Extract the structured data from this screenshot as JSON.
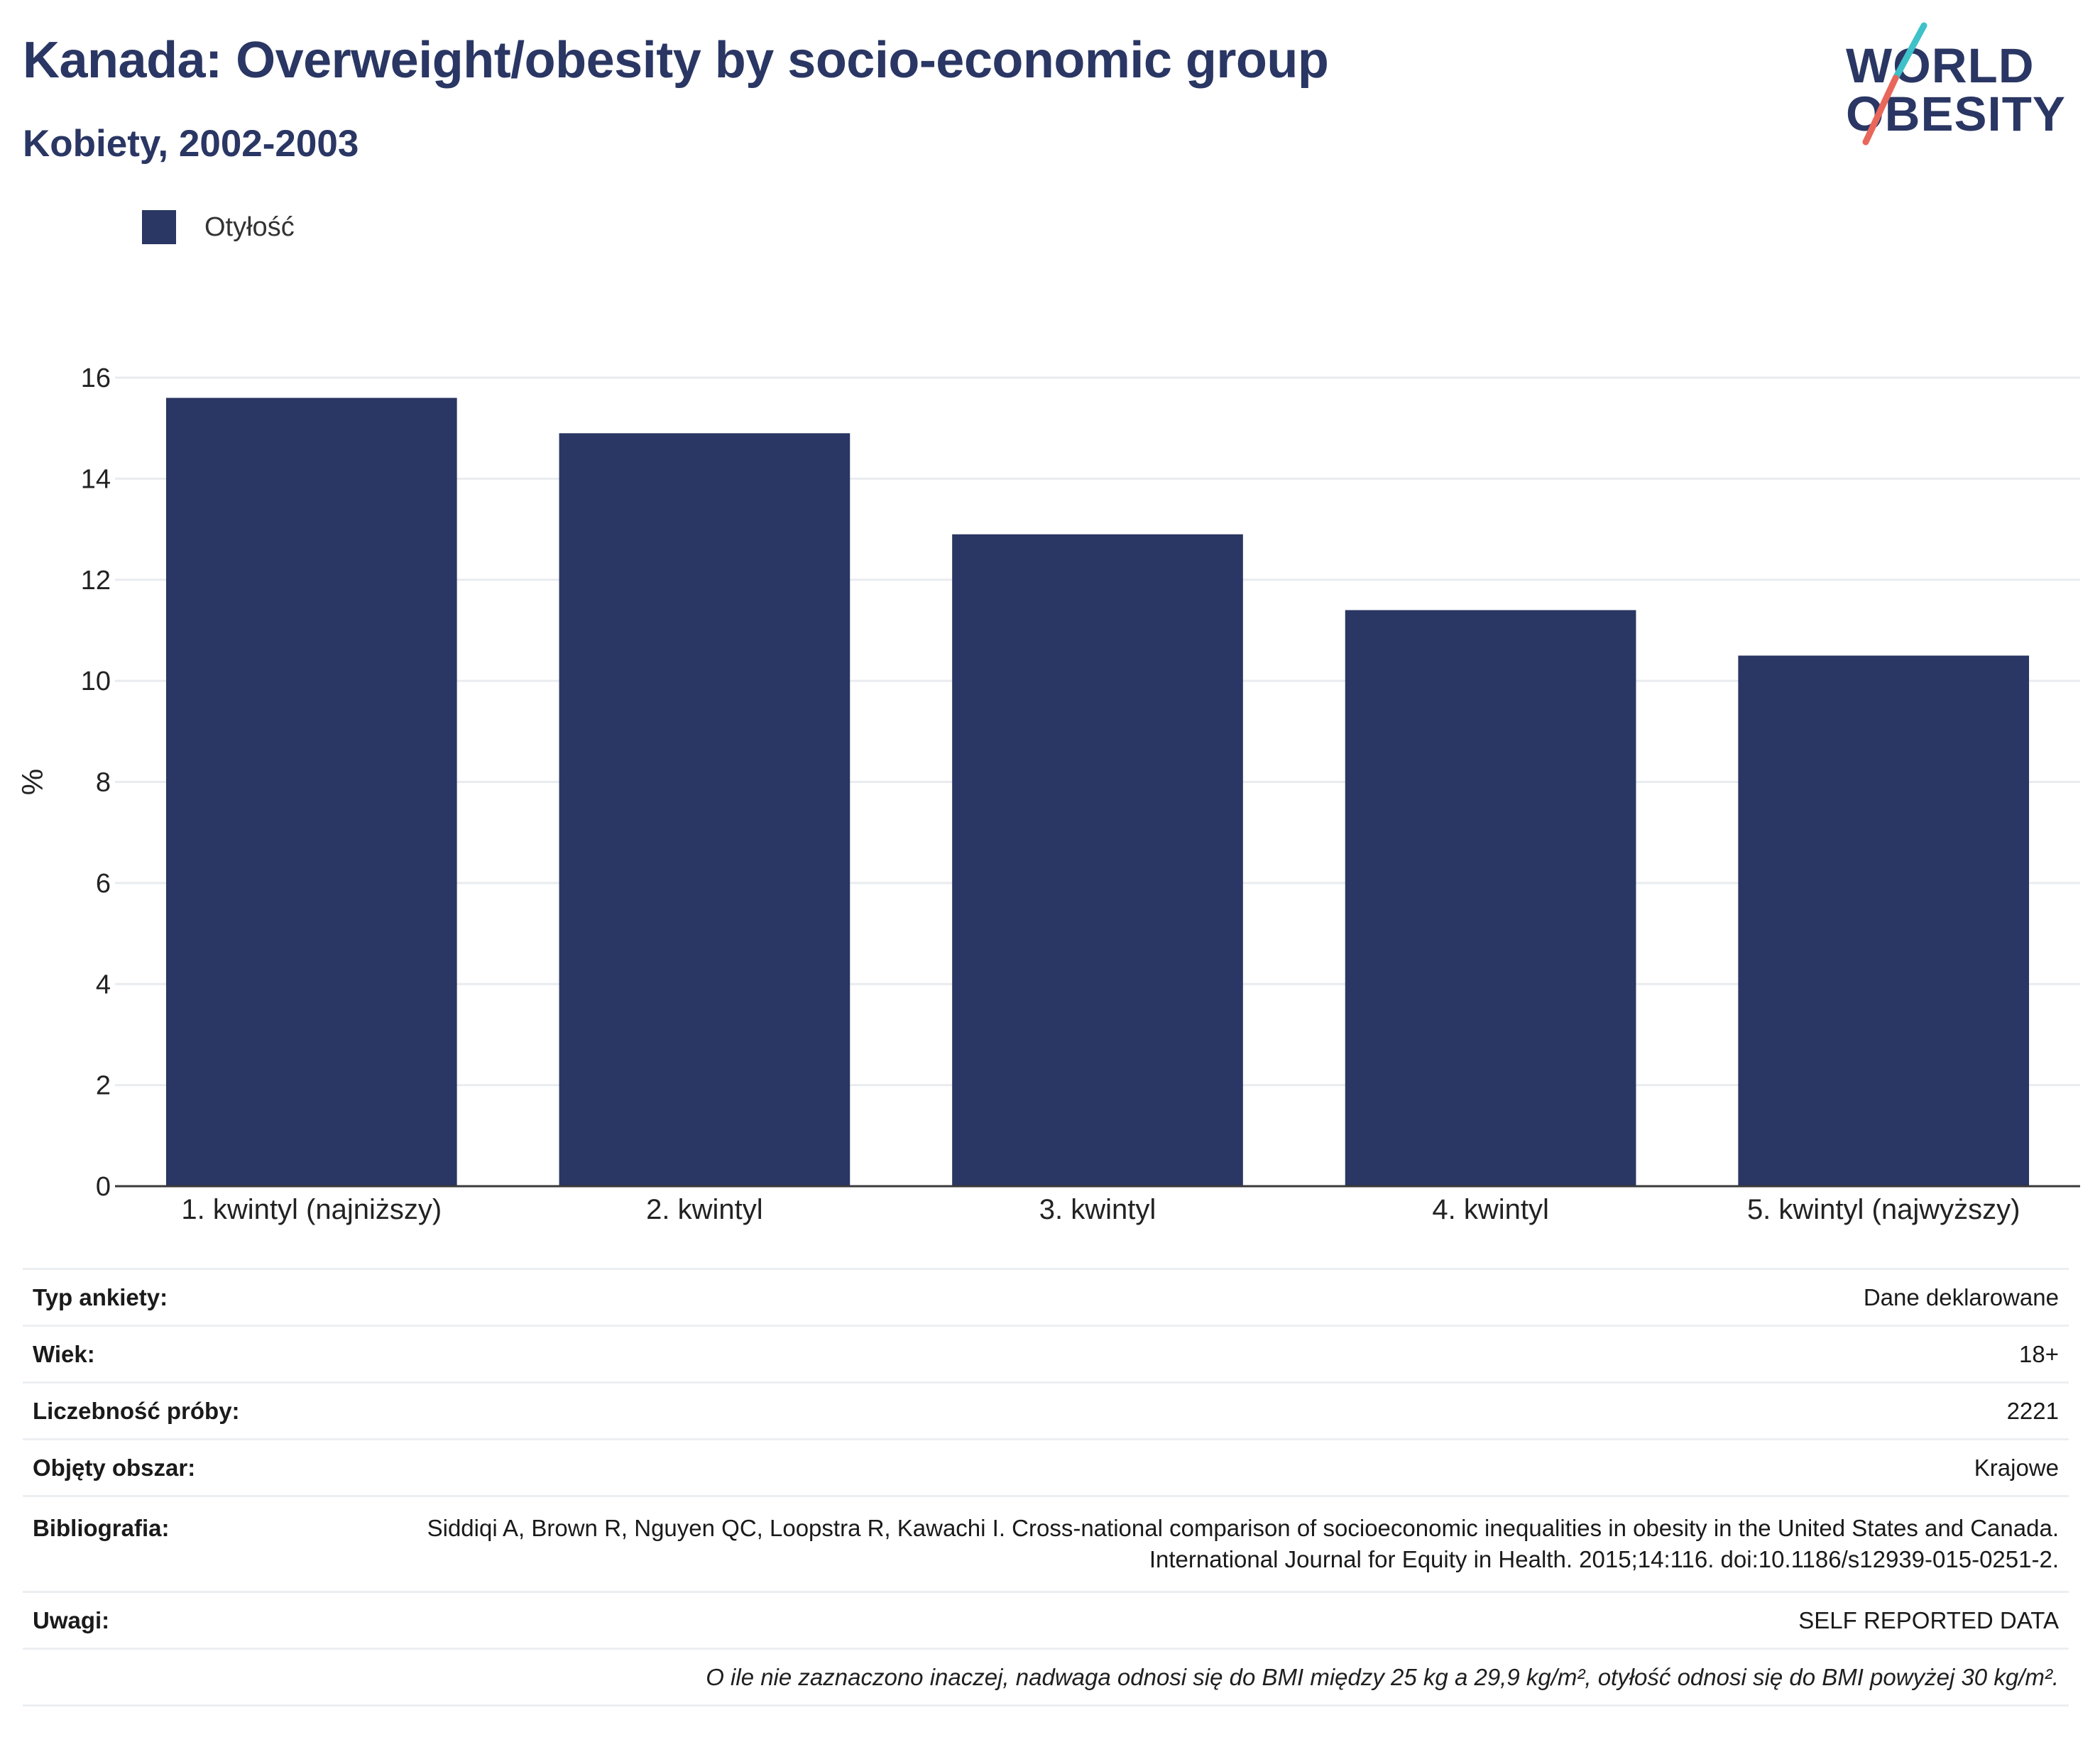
{
  "header": {
    "title": "Kanada: Overweight/obesity by socio-economic group",
    "subtitle": "Kobiety, 2002-2003"
  },
  "logo": {
    "line1": "WORLD",
    "line2": "OBESITY",
    "slash_colors": [
      "#3ec1c9",
      "#e8675a"
    ]
  },
  "legend": {
    "items": [
      {
        "label": "Otyłość",
        "color": "#2a3663"
      }
    ]
  },
  "chart_data": {
    "type": "bar",
    "categories": [
      "1. kwintyl (najniższy)",
      "2. kwintyl",
      "3. kwintyl",
      "4. kwintyl",
      "5. kwintyl (najwyższy)"
    ],
    "series": [
      {
        "name": "Otyłość",
        "values": [
          15.6,
          14.9,
          12.9,
          11.4,
          10.5
        ],
        "color": "#2a3663"
      }
    ],
    "title": "",
    "xlabel": "",
    "ylabel": "%",
    "ylim": [
      0,
      16
    ],
    "yticks": [
      0,
      2,
      4,
      6,
      8,
      10,
      12,
      14,
      16
    ],
    "grid": true,
    "legend_position": "top-left"
  },
  "info": {
    "rows": [
      {
        "key": "Typ ankiety:",
        "value": "Dane deklarowane"
      },
      {
        "key": "Wiek:",
        "value": "18+"
      },
      {
        "key": "Liczebność próby:",
        "value": "2221"
      },
      {
        "key": "Objęty obszar:",
        "value": "Krajowe"
      },
      {
        "key": "Bibliografia:",
        "value": "Siddiqi A, Brown R, Nguyen QC, Loopstra R, Kawachi I. Cross-national comparison of socioeconomic inequalities in obesity in the United States and Canada. International Journal for Equity in Health. 2015;14:116. doi:10.1186/s12939-015-0251-2."
      },
      {
        "key": "Uwagi:",
        "value": "SELF REPORTED DATA"
      }
    ],
    "footnote": "O ile nie zaznaczono inaczej, nadwaga odnosi się do BMI między 25 kg a 29,9 kg/m², otyłość odnosi się do BMI powyżej 30 kg/m²."
  }
}
